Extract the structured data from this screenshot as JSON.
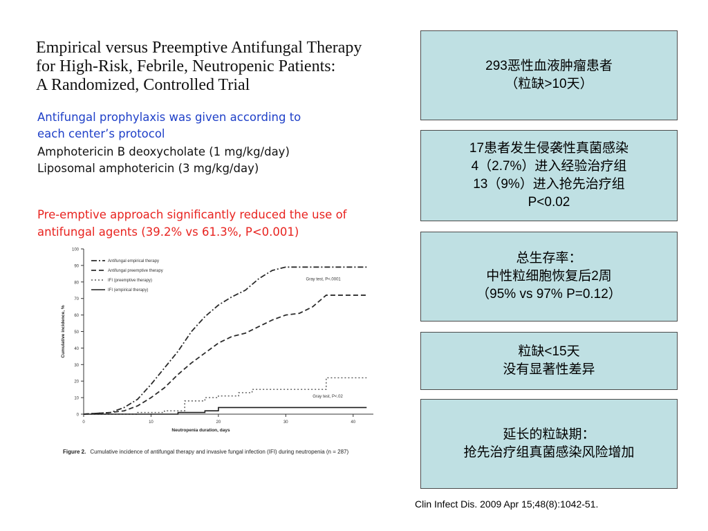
{
  "title": {
    "line1": "Empirical versus Preemptive Antifungal Therapy",
    "line2": "for High-Risk, Febrile, Neutropenic Patients:",
    "line3": "A Randomized, Controlled Trial"
  },
  "prophylaxis": {
    "line1": "Antifungal prophylaxis was given according to",
    "line2": "each center’s protocol",
    "line3": "Amphotericin B deoxycholate (1 mg/kg/day)",
    "line4": "Liposomal amphotericin (3 mg/kg/day)"
  },
  "finding": {
    "line1": "Pre-emptive approach significantly reduced the use of",
    "line2": "antifungal agents (39.2% vs 61.3%, P<0.001)"
  },
  "caption": {
    "figure_label": "Figure 2.",
    "text": "Cumulative incidence of antifungal therapy and invasive fungal infection (IFI) during neutropenia (n = 287)"
  },
  "boxes": [
    {
      "lines": [
        "293恶性血液肿瘤患者",
        "（粒缺>10天）"
      ]
    },
    {
      "lines": [
        "17患者发生侵袭性真菌感染",
        "4（2.7%）进入经验治疗组",
        "13（9%）进入抢先治疗组",
        "P<0.02"
      ]
    },
    {
      "lines": [
        "总生存率：",
        "中性粒细胞恢复后2周",
        "（95% vs 97% P=0.12）"
      ]
    },
    {
      "lines": [
        "粒缺<15天",
        "没有显著性差异"
      ]
    },
    {
      "lines": [
        "延长的粒缺期：",
        "抢先治疗组真菌感染风险增加"
      ]
    }
  ],
  "citation": "Clin Infect Dis. 2009 Apr 15;48(8):1042-51.",
  "chart_data": {
    "type": "line",
    "xlabel": "Neutropenia duration, days",
    "ylabel": "Cumulative incidence, %",
    "xlim": [
      0,
      43
    ],
    "ylim": [
      0,
      100
    ],
    "xticks": [
      0,
      10,
      20,
      30,
      40
    ],
    "yticks": [
      0,
      10,
      20,
      30,
      40,
      50,
      60,
      70,
      80,
      90,
      100
    ],
    "grid": false,
    "legend_position": "top-left",
    "annotations": [
      {
        "text": "Gray test, P<.0001",
        "x": 33,
        "y": 81
      },
      {
        "text": "Gray test, P<.02",
        "x": 34,
        "y": 10
      }
    ],
    "series": [
      {
        "name": "Antifungal empirical therapy",
        "style": "dashdot",
        "x": [
          0,
          2,
          4,
          6,
          8,
          10,
          12,
          14,
          16,
          18,
          20,
          22,
          24,
          26,
          28,
          30,
          32,
          34,
          36,
          38,
          40,
          42
        ],
        "y": [
          0,
          0.5,
          1,
          4,
          9,
          18,
          28,
          38,
          50,
          59,
          66,
          71,
          75,
          82,
          87,
          89,
          89,
          89,
          89,
          89,
          89,
          89
        ]
      },
      {
        "name": "Antifungal preemptive therapy",
        "style": "dashed",
        "x": [
          0,
          2,
          4,
          6,
          8,
          10,
          12,
          14,
          16,
          18,
          20,
          22,
          24,
          26,
          28,
          30,
          32,
          34,
          36,
          38,
          40,
          42
        ],
        "y": [
          0,
          0.5,
          1,
          2,
          5,
          10,
          16,
          24,
          31,
          37,
          43,
          47,
          49,
          53,
          57,
          60,
          61,
          65,
          72,
          72,
          72,
          72
        ]
      },
      {
        "name": "IFI (preemptive therapy)",
        "style": "dotted",
        "x": [
          0,
          4,
          8,
          12,
          14,
          15,
          18,
          20,
          23,
          25,
          30,
          35,
          36,
          42
        ],
        "y": [
          0,
          0,
          1,
          2,
          2,
          8,
          10,
          11,
          13,
          15,
          15,
          15,
          22,
          22
        ]
      },
      {
        "name": "IFI (empirical therapy)",
        "style": "solid",
        "x": [
          0,
          14,
          16,
          18,
          19,
          20,
          25,
          30,
          35,
          42
        ],
        "y": [
          0,
          1,
          1,
          2,
          2,
          4,
          4,
          4,
          4,
          4
        ]
      }
    ]
  }
}
